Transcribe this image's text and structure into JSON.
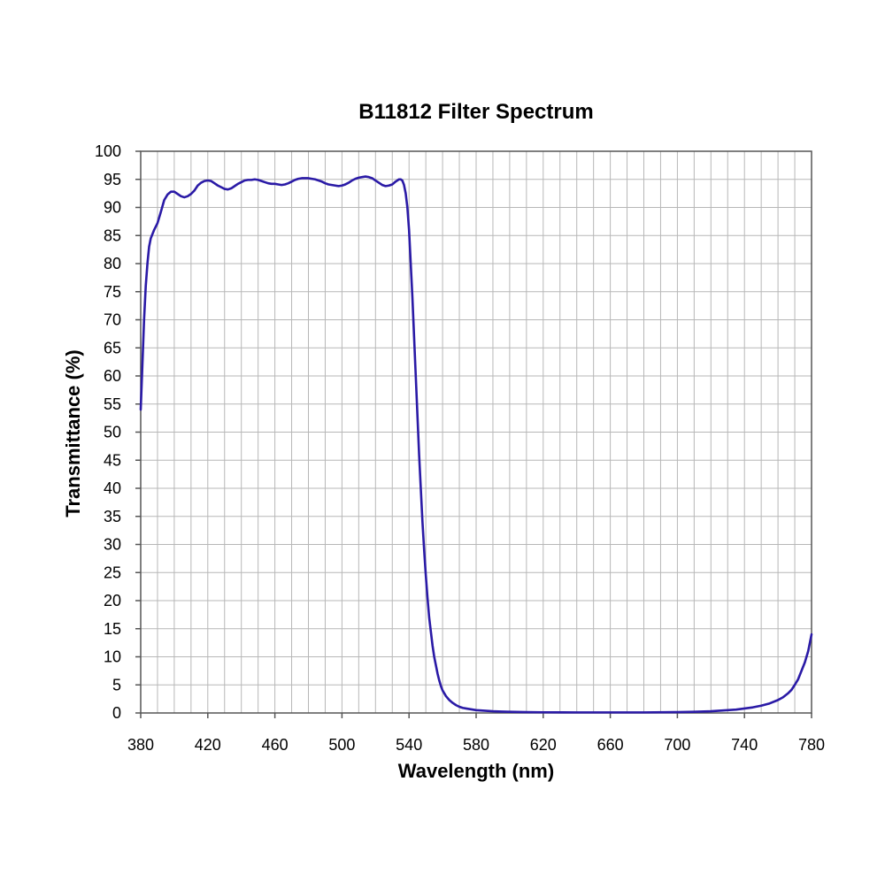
{
  "chart_data": {
    "type": "line",
    "title": "B11812 Filter  Spectrum",
    "xlabel": "Wavelength (nm)",
    "ylabel": "Transmittance (%)",
    "xlim": [
      380,
      780
    ],
    "ylim": [
      0,
      100
    ],
    "x_ticks": [
      380,
      420,
      460,
      500,
      540,
      580,
      620,
      660,
      700,
      740,
      780
    ],
    "y_ticks": [
      0,
      5,
      10,
      15,
      20,
      25,
      30,
      35,
      40,
      45,
      50,
      55,
      60,
      65,
      70,
      75,
      80,
      85,
      90,
      95,
      100
    ],
    "x_grid_step": 10,
    "y_grid_step": 5,
    "grid": true,
    "legend": "none",
    "line_color": "#2a1aa6",
    "series": [
      {
        "x": [
          380,
          381,
          382,
          383,
          384,
          385,
          386,
          388,
          390,
          392,
          394,
          396,
          398,
          400,
          402,
          404,
          406,
          408,
          410,
          412,
          414,
          416,
          418,
          420,
          422,
          424,
          426,
          428,
          430,
          432,
          434,
          436,
          438,
          440,
          442,
          444,
          446,
          448,
          450,
          452,
          454,
          456,
          458,
          460,
          462,
          464,
          466,
          468,
          470,
          472,
          474,
          476,
          478,
          480,
          482,
          484,
          486,
          488,
          490,
          492,
          494,
          496,
          498,
          500,
          502,
          504,
          506,
          508,
          510,
          512,
          514,
          516,
          518,
          520,
          522,
          524,
          526,
          528,
          530,
          532,
          534,
          535,
          536,
          537,
          538,
          539,
          540,
          541,
          542,
          543,
          544,
          545,
          546,
          547,
          548,
          549,
          550,
          551,
          552,
          553,
          554,
          555,
          556,
          557,
          558,
          559,
          560,
          562,
          564,
          566,
          568,
          570,
          572,
          574,
          576,
          578,
          580,
          585,
          590,
          595,
          600,
          610,
          620,
          640,
          660,
          680,
          700,
          710,
          720,
          725,
          730,
          735,
          740,
          745,
          750,
          755,
          760,
          763,
          766,
          768,
          770,
          772,
          774,
          776,
          778,
          779,
          780
        ],
        "y": [
          54,
          62,
          70,
          76,
          80,
          83,
          84.5,
          86,
          87.2,
          89.2,
          91.3,
          92.3,
          92.8,
          92.8,
          92.4,
          92.0,
          91.8,
          92.0,
          92.4,
          93.0,
          93.9,
          94.4,
          94.7,
          94.8,
          94.7,
          94.3,
          93.9,
          93.6,
          93.3,
          93.2,
          93.4,
          93.8,
          94.2,
          94.5,
          94.8,
          94.9,
          94.9,
          95.0,
          94.9,
          94.7,
          94.5,
          94.3,
          94.2,
          94.2,
          94.1,
          94.0,
          94.1,
          94.3,
          94.6,
          94.9,
          95.1,
          95.2,
          95.2,
          95.2,
          95.1,
          95.0,
          94.8,
          94.6,
          94.3,
          94.1,
          94.0,
          93.9,
          93.8,
          93.9,
          94.1,
          94.4,
          94.8,
          95.1,
          95.3,
          95.4,
          95.5,
          95.4,
          95.2,
          94.8,
          94.4,
          94.0,
          93.8,
          93.9,
          94.1,
          94.6,
          95.0,
          95.0,
          94.8,
          94.0,
          92.5,
          90.0,
          86.0,
          80.0,
          74.0,
          67.0,
          60.0,
          53.0,
          46.0,
          40.0,
          34.0,
          29.0,
          24.5,
          20.5,
          17.0,
          14.5,
          12.0,
          10.0,
          8.5,
          7.0,
          5.8,
          4.8,
          4.0,
          3.0,
          2.3,
          1.8,
          1.4,
          1.1,
          0.9,
          0.8,
          0.7,
          0.6,
          0.5,
          0.4,
          0.3,
          0.25,
          0.2,
          0.15,
          0.12,
          0.1,
          0.1,
          0.1,
          0.15,
          0.2,
          0.3,
          0.4,
          0.5,
          0.6,
          0.8,
          1.0,
          1.3,
          1.7,
          2.3,
          2.8,
          3.5,
          4.1,
          5.0,
          6.0,
          7.5,
          9.0,
          11.0,
          12.5,
          14.0
        ]
      }
    ]
  }
}
